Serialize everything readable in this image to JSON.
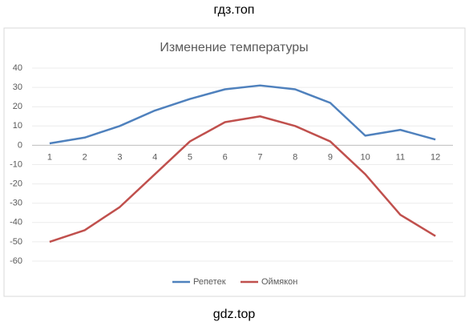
{
  "header": "гдз.топ",
  "footer": "gdz.top",
  "chart_data": {
    "type": "line",
    "title": "Изменение температуры",
    "categories": [
      "1",
      "2",
      "3",
      "4",
      "5",
      "6",
      "7",
      "8",
      "9",
      "10",
      "11",
      "12"
    ],
    "series": [
      {
        "name": "Репетек",
        "color": "#4f81bd",
        "values": [
          1,
          4,
          10,
          18,
          24,
          29,
          31,
          29,
          22,
          5,
          8,
          3
        ]
      },
      {
        "name": "Оймякон",
        "color": "#c0504d",
        "values": [
          -50,
          -44,
          -32,
          -15,
          2,
          12,
          15,
          10,
          2,
          -15,
          -36,
          -47
        ]
      }
    ],
    "ylim": [
      -60,
      40
    ],
    "yticks": [
      -60,
      -50,
      -40,
      -30,
      -20,
      -10,
      0,
      10,
      20,
      30,
      40
    ],
    "grid": true,
    "legend": "bottom"
  }
}
